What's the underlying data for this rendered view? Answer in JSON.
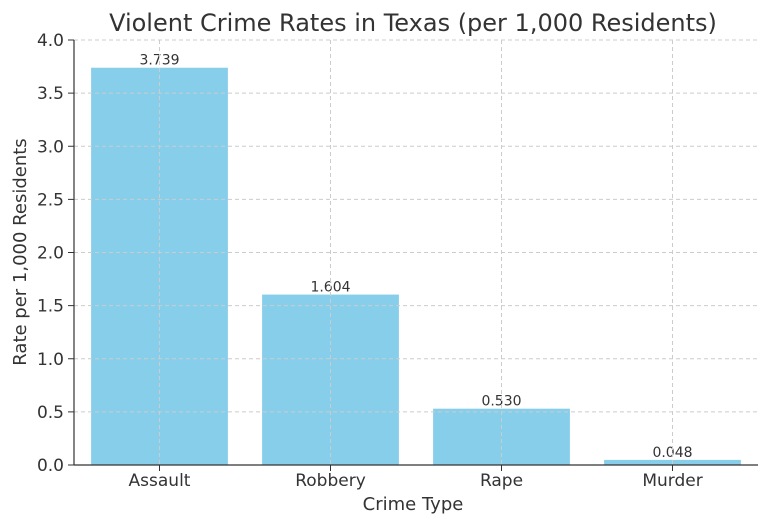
{
  "chart_data": {
    "type": "bar",
    "title": "Violent Crime Rates in Texas (per 1,000 Residents)",
    "xlabel": "Crime Type",
    "ylabel": "Rate per 1,000 Residents",
    "categories": [
      "Assault",
      "Robbery",
      "Rape",
      "Murder"
    ],
    "values": [
      3.739,
      1.604,
      0.53,
      0.048
    ],
    "value_labels": [
      "3.739",
      "1.604",
      "0.530",
      "0.048"
    ],
    "ylim": [
      0,
      4.0
    ],
    "yticks": [
      "0.0",
      "0.5",
      "1.0",
      "1.5",
      "2.0",
      "2.5",
      "3.0",
      "3.5",
      "4.0"
    ],
    "grid": true,
    "bar_color": "#87ceeb"
  }
}
